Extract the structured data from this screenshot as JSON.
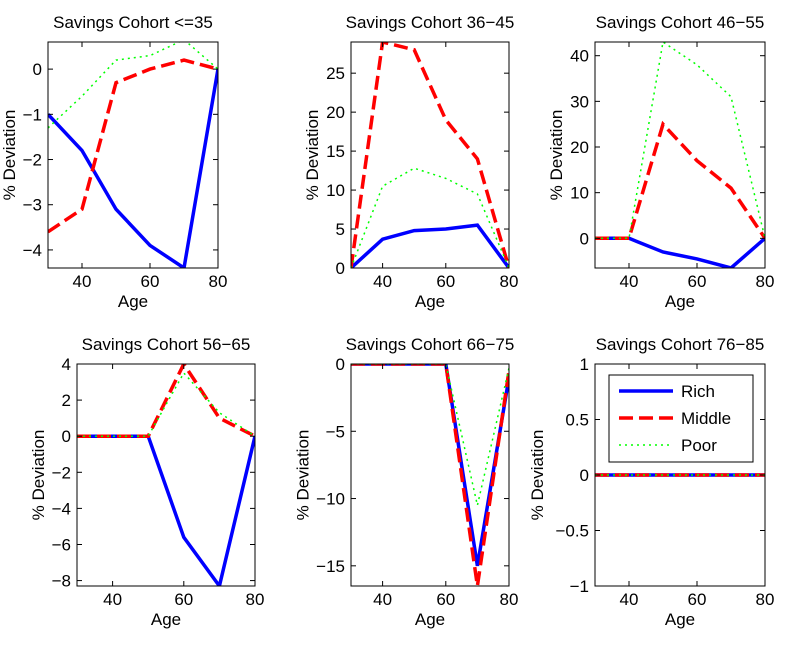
{
  "chart_data": [
    {
      "type": "line",
      "title": "Savings Cohort <=35",
      "xlabel": "Age",
      "ylabel": "% Deviation",
      "xlim": [
        30,
        80
      ],
      "ylim": [
        -4.4,
        0.6
      ],
      "xticks": [
        40,
        60,
        80
      ],
      "xtick_labels": [
        "40",
        "60",
        "80"
      ],
      "yticks": [
        -4,
        -3,
        -2,
        -1,
        0
      ],
      "ytick_labels": [
        "−4",
        "−3",
        "−2",
        "−1",
        "0"
      ],
      "x": [
        30,
        40,
        50,
        60,
        70,
        80
      ],
      "series": [
        {
          "name": "Rich",
          "values": [
            -1.0,
            -1.8,
            -3.1,
            -3.9,
            -4.4,
            0.0
          ],
          "color": "#0000ff",
          "dash": "solid"
        },
        {
          "name": "Middle",
          "values": [
            -3.6,
            -3.1,
            -0.3,
            0.0,
            0.2,
            0.0
          ],
          "color": "#ff0000",
          "dash": "dashed"
        },
        {
          "name": "Poor",
          "values": [
            -1.3,
            -0.6,
            0.2,
            0.3,
            0.65,
            0.0
          ],
          "color": "#00ff00",
          "dash": "dotted"
        }
      ]
    },
    {
      "type": "line",
      "title": "Savings Cohort 36−45",
      "xlabel": "Age",
      "ylabel": "% Deviation",
      "xlim": [
        30,
        80
      ],
      "ylim": [
        0,
        29
      ],
      "xticks": [
        40,
        60,
        80
      ],
      "xtick_labels": [
        "40",
        "60",
        "80"
      ],
      "yticks": [
        0,
        5,
        10,
        15,
        20,
        25
      ],
      "ytick_labels": [
        "0",
        "5",
        "10",
        "15",
        "20",
        "25"
      ],
      "x": [
        30,
        40,
        50,
        60,
        70,
        80
      ],
      "series": [
        {
          "name": "Rich",
          "values": [
            0,
            3.7,
            4.8,
            5.0,
            5.5,
            0
          ],
          "color": "#0000ff",
          "dash": "solid"
        },
        {
          "name": "Middle",
          "values": [
            0,
            29,
            28,
            19,
            14,
            0
          ],
          "color": "#ff0000",
          "dash": "dashed"
        },
        {
          "name": "Poor",
          "values": [
            0,
            10.5,
            12.8,
            11.5,
            9.5,
            0
          ],
          "color": "#00ff00",
          "dash": "dotted"
        }
      ]
    },
    {
      "type": "line",
      "title": "Savings Cohort 46−55",
      "xlabel": "Age",
      "ylabel": "% Deviation",
      "xlim": [
        30,
        80
      ],
      "ylim": [
        -6.5,
        43
      ],
      "xticks": [
        40,
        60,
        80
      ],
      "xtick_labels": [
        "40",
        "60",
        "80"
      ],
      "yticks": [
        0,
        10,
        20,
        30,
        40
      ],
      "ytick_labels": [
        "0",
        "10",
        "20",
        "30",
        "40"
      ],
      "x": [
        30,
        40,
        50,
        60,
        70,
        80
      ],
      "series": [
        {
          "name": "Rich",
          "values": [
            0,
            0,
            -3.0,
            -4.5,
            -6.5,
            0
          ],
          "color": "#0000ff",
          "dash": "solid"
        },
        {
          "name": "Middle",
          "values": [
            0,
            0,
            25,
            17,
            11,
            0
          ],
          "color": "#ff0000",
          "dash": "dashed"
        },
        {
          "name": "Poor",
          "values": [
            0,
            0,
            43,
            38,
            31,
            0
          ],
          "color": "#00ff00",
          "dash": "dotted"
        }
      ]
    },
    {
      "type": "line",
      "title": "Savings Cohort 56−65",
      "xlabel": "Age",
      "ylabel": "% Deviation",
      "xlim": [
        30,
        80
      ],
      "ylim": [
        -8.3,
        4
      ],
      "xticks": [
        40,
        60,
        80
      ],
      "xtick_labels": [
        "40",
        "60",
        "80"
      ],
      "yticks": [
        -8,
        -6,
        -4,
        -2,
        0,
        2,
        4
      ],
      "ytick_labels": [
        "−8",
        "−6",
        "−4",
        "−2",
        "0",
        "2",
        "4"
      ],
      "x": [
        30,
        40,
        50,
        60,
        70,
        80
      ],
      "series": [
        {
          "name": "Rich",
          "values": [
            0,
            0,
            0,
            -5.6,
            -8.3,
            0
          ],
          "color": "#0000ff",
          "dash": "solid"
        },
        {
          "name": "Middle",
          "values": [
            0,
            0,
            0,
            4.0,
            1.0,
            0
          ],
          "color": "#ff0000",
          "dash": "dashed"
        },
        {
          "name": "Poor",
          "values": [
            0,
            0,
            0,
            3.5,
            1.3,
            0
          ],
          "color": "#00ff00",
          "dash": "dotted"
        }
      ]
    },
    {
      "type": "line",
      "title": "Savings Cohort 66−75",
      "xlabel": "Age",
      "ylabel": "% Deviation",
      "xlim": [
        30,
        80
      ],
      "ylim": [
        -16.5,
        0
      ],
      "xticks": [
        40,
        60,
        80
      ],
      "xtick_labels": [
        "40",
        "60",
        "80"
      ],
      "yticks": [
        -15,
        -10,
        -5,
        0
      ],
      "ytick_labels": [
        "−15",
        "−10",
        "−5",
        "0"
      ],
      "x": [
        30,
        40,
        50,
        60,
        70,
        80
      ],
      "series": [
        {
          "name": "Rich",
          "values": [
            0,
            0,
            0,
            0,
            -15.0,
            -1.0
          ],
          "color": "#0000ff",
          "dash": "solid"
        },
        {
          "name": "Middle",
          "values": [
            0,
            0,
            0,
            0,
            -16.5,
            -0.5
          ],
          "color": "#ff0000",
          "dash": "dashed"
        },
        {
          "name": "Poor",
          "values": [
            0,
            0,
            0,
            0,
            -10.5,
            -0.3
          ],
          "color": "#00ff00",
          "dash": "dotted"
        }
      ]
    },
    {
      "type": "line",
      "title": "Savings Cohort 76−85",
      "xlabel": "Age",
      "ylabel": "% Deviation",
      "xlim": [
        30,
        80
      ],
      "ylim": [
        -1,
        1
      ],
      "xticks": [
        40,
        60,
        80
      ],
      "xtick_labels": [
        "40",
        "60",
        "80"
      ],
      "yticks": [
        -1,
        -0.5,
        0,
        0.5,
        1
      ],
      "ytick_labels": [
        "−1",
        "−0.5",
        "0",
        "0.5",
        "1"
      ],
      "x": [
        30,
        40,
        50,
        60,
        70,
        80
      ],
      "legend": {
        "position": "upper-center",
        "entries": [
          "Rich",
          "Middle",
          "Poor"
        ]
      },
      "series": [
        {
          "name": "Rich",
          "values": [
            0,
            0,
            0,
            0,
            0,
            0
          ],
          "color": "#0000ff",
          "dash": "solid"
        },
        {
          "name": "Middle",
          "values": [
            0,
            0,
            0,
            0,
            0,
            0
          ],
          "color": "#ff0000",
          "dash": "dashed"
        },
        {
          "name": "Poor",
          "values": [
            0,
            0,
            0,
            0,
            0,
            0
          ],
          "color": "#00ff00",
          "dash": "dotted"
        }
      ]
    }
  ]
}
